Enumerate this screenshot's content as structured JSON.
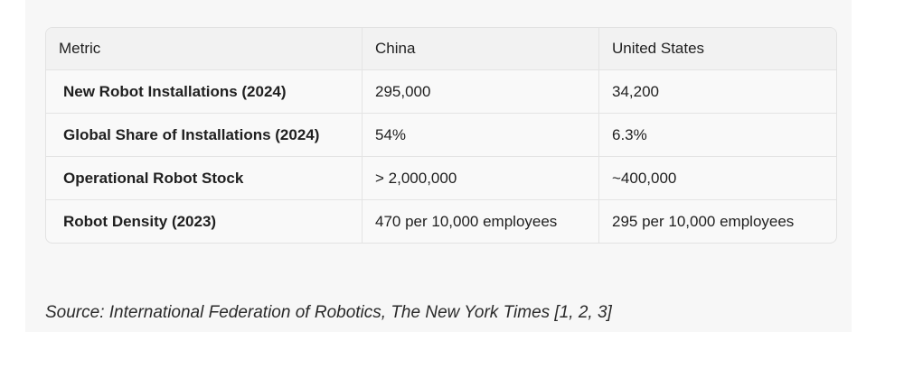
{
  "table": {
    "header": [
      "Metric",
      "China",
      "United States"
    ],
    "rows": [
      [
        "New Robot Installations (2024)",
        "295,000",
        "34,200"
      ],
      [
        "Global Share of Installations (2024)",
        "54%",
        "6.3%"
      ],
      [
        "Operational Robot Stock",
        "> 2,000,000",
        "~400,000"
      ],
      [
        "Robot Density (2023)",
        "470 per 10,000 employees",
        "295 per 10,000 employees"
      ]
    ]
  },
  "source": "Source: International Federation of Robotics, The New York Times [1, 2, 3]"
}
